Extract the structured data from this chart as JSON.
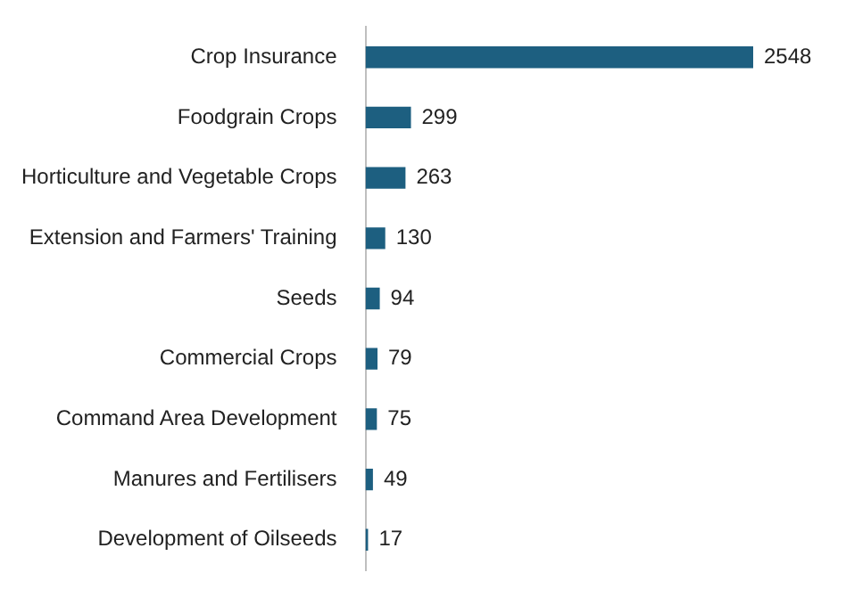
{
  "chart_data": {
    "type": "bar",
    "orientation": "horizontal",
    "categories": [
      "Crop Insurance",
      "Foodgrain Crops",
      "Horticulture and Vegetable Crops",
      "Extension and Farmers' Training",
      "Seeds",
      "Commercial Crops",
      "Command Area Development",
      "Manures and Fertilisers",
      "Development of Oilseeds"
    ],
    "values": [
      2548,
      299,
      263,
      130,
      94,
      79,
      75,
      49,
      17
    ],
    "color": "#1d5f80",
    "data_labels": true
  }
}
